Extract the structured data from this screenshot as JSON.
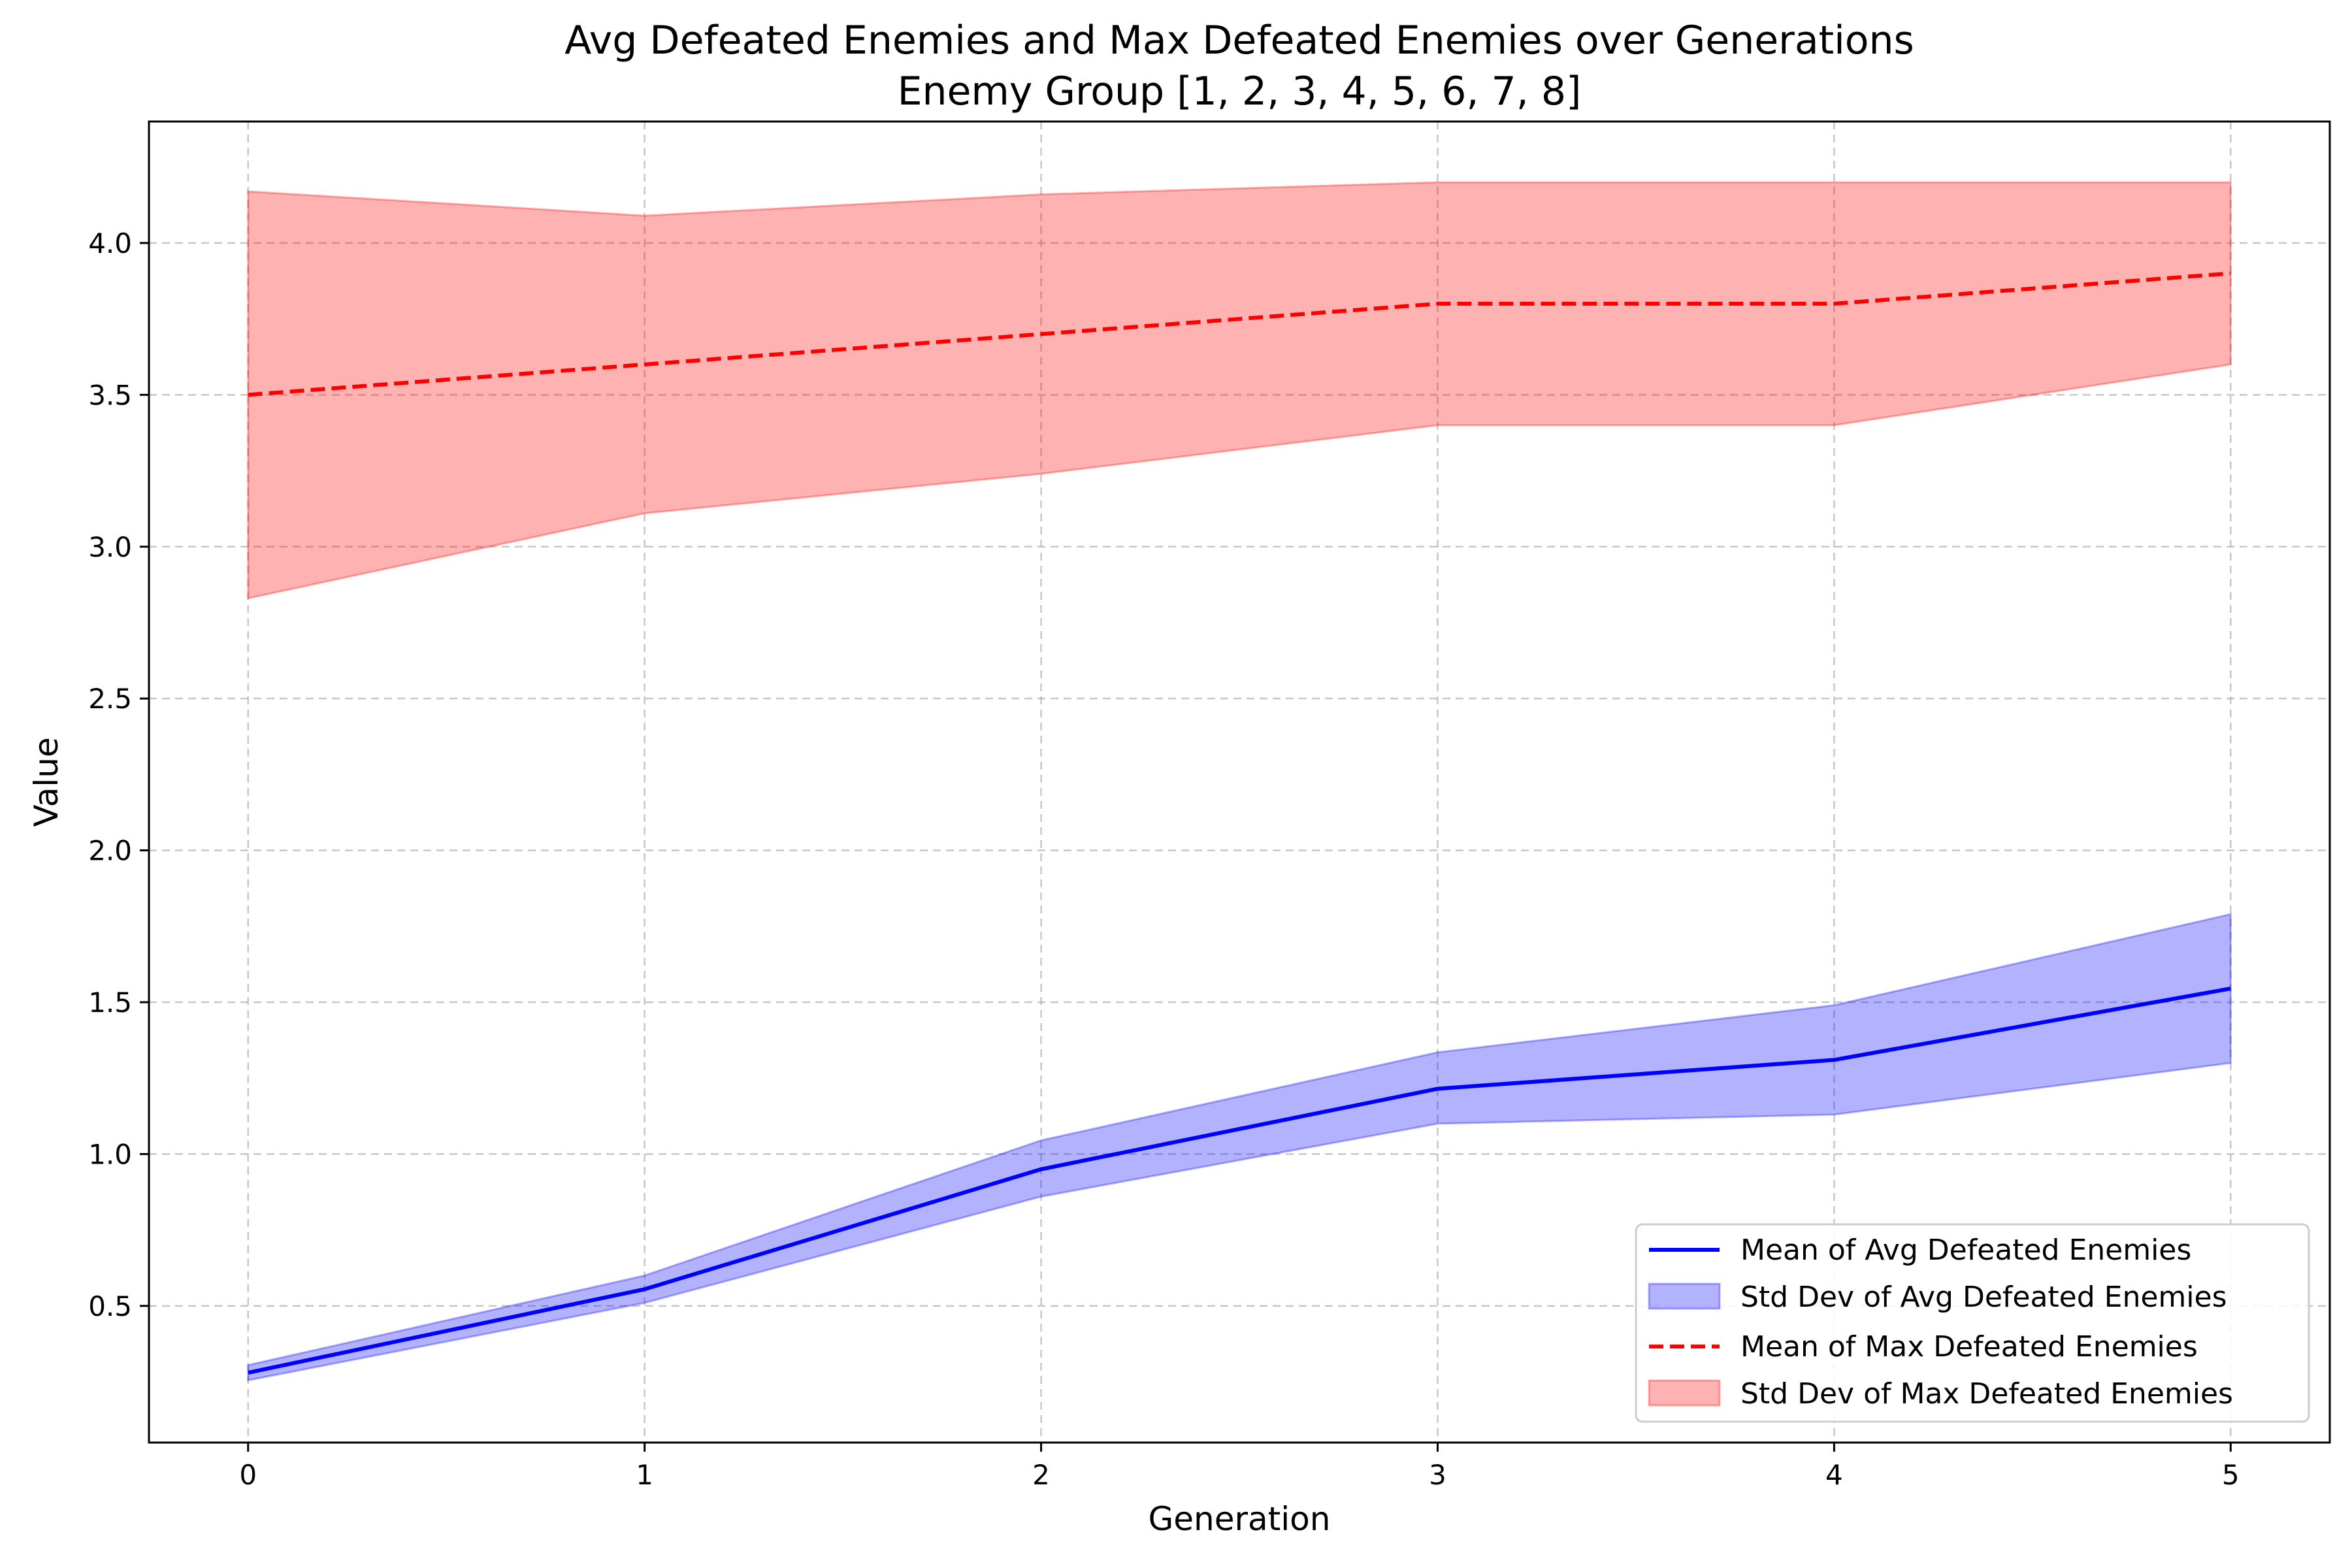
{
  "chart_data": {
    "type": "line",
    "title": "Avg Defeated Enemies and Max Defeated Enemies over Generations",
    "subtitle": "Enemy Group [1, 2, 3, 4, 5, 6, 7, 8]",
    "xlabel": "Generation",
    "ylabel": "Value",
    "x": [
      0,
      1,
      2,
      3,
      4,
      5
    ],
    "xlim": [
      -0.25,
      5.25
    ],
    "ylim": [
      0.05,
      4.4
    ],
    "xticks": [
      "0",
      "1",
      "2",
      "3",
      "4",
      "5"
    ],
    "yticks": [
      "0.5",
      "1.0",
      "1.5",
      "2.0",
      "2.5",
      "3.0",
      "3.5",
      "4.0"
    ],
    "grid": true,
    "legend_position": "lower-right",
    "series": [
      {
        "name": "Mean of Avg Defeated Enemies",
        "kind": "line",
        "style": "solid",
        "color": "#0000ff",
        "values": [
          0.28,
          0.555,
          0.95,
          1.215,
          1.31,
          1.545
        ]
      },
      {
        "name": "Std Dev of Avg Defeated Enemies",
        "kind": "band",
        "color": "#0000ff",
        "lower": [
          0.255,
          0.51,
          0.86,
          1.1,
          1.13,
          1.3
        ],
        "upper": [
          0.305,
          0.6,
          1.045,
          1.335,
          1.49,
          1.79
        ]
      },
      {
        "name": "Mean of Max Defeated Enemies",
        "kind": "line",
        "style": "dashed",
        "color": "#ff0000",
        "values": [
          3.5,
          3.6,
          3.7,
          3.8,
          3.8,
          3.9
        ]
      },
      {
        "name": "Std Dev of Max Defeated Enemies",
        "kind": "band",
        "color": "#ff0000",
        "lower": [
          2.83,
          3.11,
          3.24,
          3.4,
          3.4,
          3.6
        ],
        "upper": [
          4.17,
          4.09,
          4.16,
          4.2,
          4.2,
          4.2
        ]
      }
    ]
  }
}
